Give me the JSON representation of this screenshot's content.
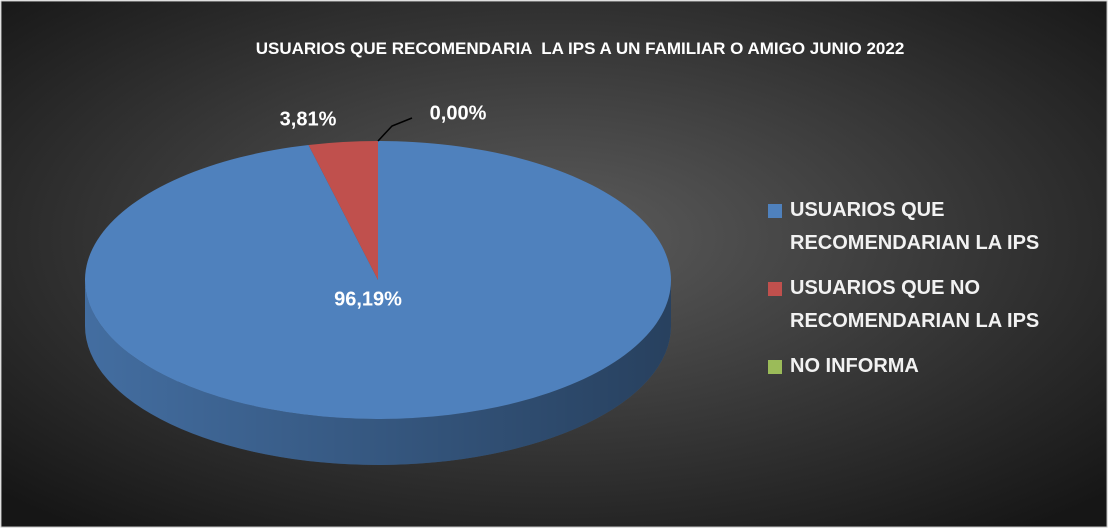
{
  "chart_data": {
    "type": "pie",
    "title": "USUARIOS QUE RECOMENDARIA  LA IPS A UN FAMILIAR O AMIGO JUNIO 2022",
    "categories": [
      "USUARIOS QUE RECOMENDARIAN LA IPS",
      "USUARIOS QUE NO RECOMENDARIAN LA IPS",
      "NO INFORMA"
    ],
    "values": [
      96.19,
      3.81,
      0
    ],
    "value_labels": [
      "96,19%",
      "3,81%",
      "0,00%"
    ],
    "colors": [
      "#4f81bd",
      "#c0504d",
      "#9bbb59"
    ],
    "legend": "right"
  }
}
